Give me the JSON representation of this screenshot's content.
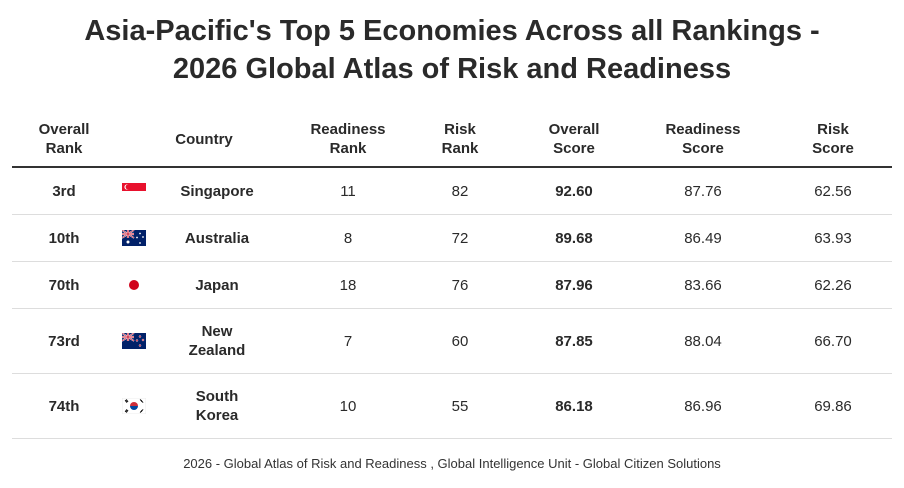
{
  "title": {
    "line1": "Asia-Pacific's Top 5 Economies Across all Rankings -",
    "line2": "2026 Global Atlas of Risk and Readiness"
  },
  "headers": [
    [
      "Overall",
      "Rank"
    ],
    [
      "Country"
    ],
    [
      "Readiness",
      "Rank"
    ],
    [
      "Risk",
      "Rank"
    ],
    [
      "Overall",
      "Score"
    ],
    [
      "Readiness",
      "Score"
    ],
    [
      "Risk",
      "Score"
    ]
  ],
  "rows": [
    {
      "overall_rank": "3rd",
      "flag": "singapore-flag",
      "country": [
        "Singapore"
      ],
      "readiness_rank": "11",
      "risk_rank": "82",
      "overall_score": "92.60",
      "readiness_score": "87.76",
      "risk_score": "62.56"
    },
    {
      "overall_rank": "10th",
      "flag": "australia-flag",
      "country": [
        "Australia"
      ],
      "readiness_rank": "8",
      "risk_rank": "72",
      "overall_score": "89.68",
      "readiness_score": "86.49",
      "risk_score": "63.93"
    },
    {
      "overall_rank": "70th",
      "flag": "japan-flag",
      "country": [
        "Japan"
      ],
      "readiness_rank": "18",
      "risk_rank": "76",
      "overall_score": "87.96",
      "readiness_score": "83.66",
      "risk_score": "62.26"
    },
    {
      "overall_rank": "73rd",
      "flag": "new-zealand-flag",
      "country": [
        "New",
        "Zealand"
      ],
      "readiness_rank": "7",
      "risk_rank": "60",
      "overall_score": "87.85",
      "readiness_score": "88.04",
      "risk_score": "66.70"
    },
    {
      "overall_rank": "74th",
      "flag": "south-korea-flag",
      "country": [
        "South",
        "Korea"
      ],
      "readiness_rank": "10",
      "risk_rank": "55",
      "overall_score": "86.18",
      "readiness_score": "86.96",
      "risk_score": "69.86"
    }
  ],
  "footer": "2026 - Global Atlas of Risk and Readiness , Global Intelligence Unit - Global Citizen Solutions",
  "colors": {
    "text": "#2a2a2a",
    "rule": "#333333",
    "row_border": "#dddddd",
    "flag_red": "#e8112d",
    "flag_blue": "#012169"
  }
}
